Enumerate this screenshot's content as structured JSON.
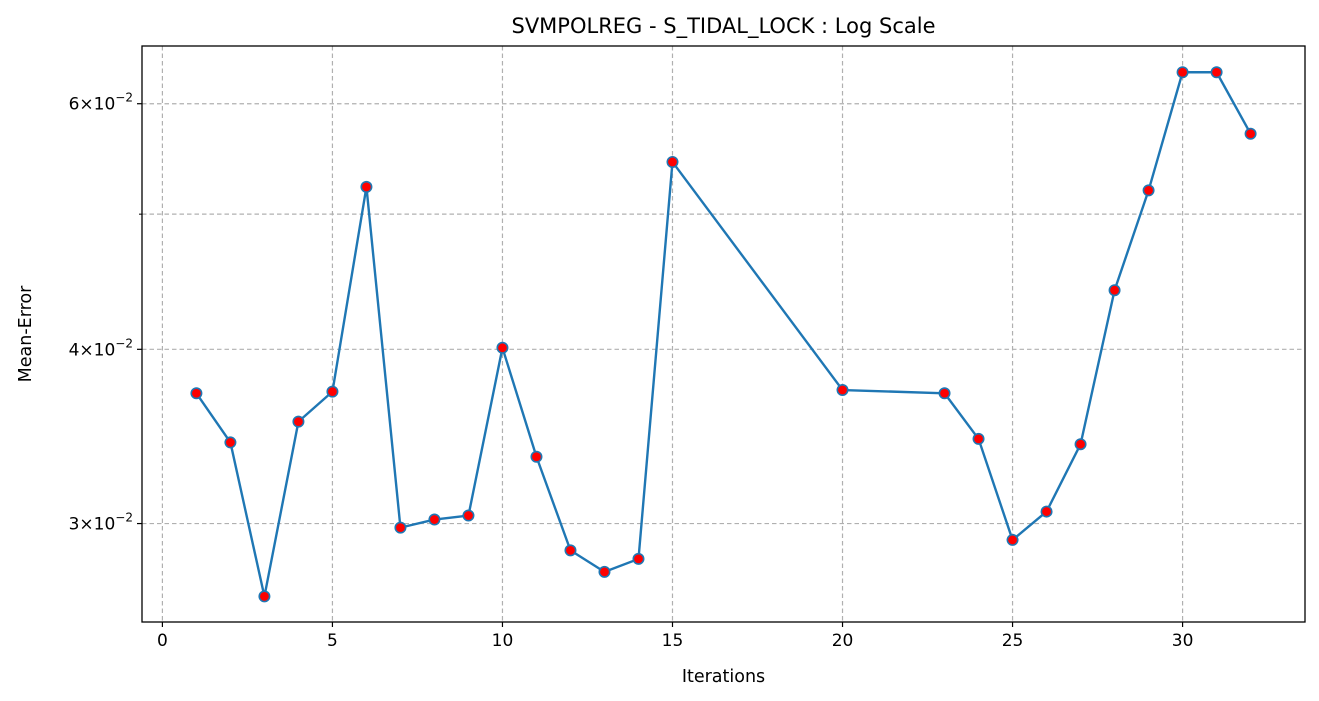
{
  "chart_data": {
    "type": "line",
    "title": "SVMPOLREG - S_TIDAL_LOCK : Log Scale",
    "xlabel": "Iterations",
    "ylabel": "Mean-Error",
    "yscale": "log",
    "xlim": [
      -0.6,
      33.6
    ],
    "ylim": [
      0.0255,
      0.066
    ],
    "x_ticks": [
      0,
      5,
      10,
      15,
      20,
      25,
      30
    ],
    "y_major_ticks": [
      {
        "value": 0.03,
        "mantissa": "3",
        "exponent": "−2"
      },
      {
        "value": 0.04,
        "mantissa": "4",
        "exponent": "−2"
      },
      {
        "value": 0.06,
        "mantissa": "6",
        "exponent": "−2"
      }
    ],
    "y_minor_ticks": [
      0.05
    ],
    "grid": true,
    "line_color": "#1f77b4",
    "marker_face_color": "#ff0000",
    "marker_edge_color": "#1f77b4",
    "series": [
      {
        "x": [
          1,
          2,
          3,
          4,
          5,
          6,
          7,
          8,
          9,
          10,
          11,
          12,
          13,
          14,
          15,
          20,
          23,
          24,
          25,
          26,
          27,
          28,
          29,
          30,
          31,
          32
        ],
        "values": [
          0.0372,
          0.0343,
          0.0266,
          0.0355,
          0.0373,
          0.0523,
          0.0298,
          0.0302,
          0.0304,
          0.0401,
          0.0335,
          0.0287,
          0.0277,
          0.0283,
          0.0545,
          0.0374,
          0.0372,
          0.0345,
          0.0292,
          0.0306,
          0.0342,
          0.0441,
          0.052,
          0.0632,
          0.0632,
          0.0571
        ]
      }
    ]
  }
}
